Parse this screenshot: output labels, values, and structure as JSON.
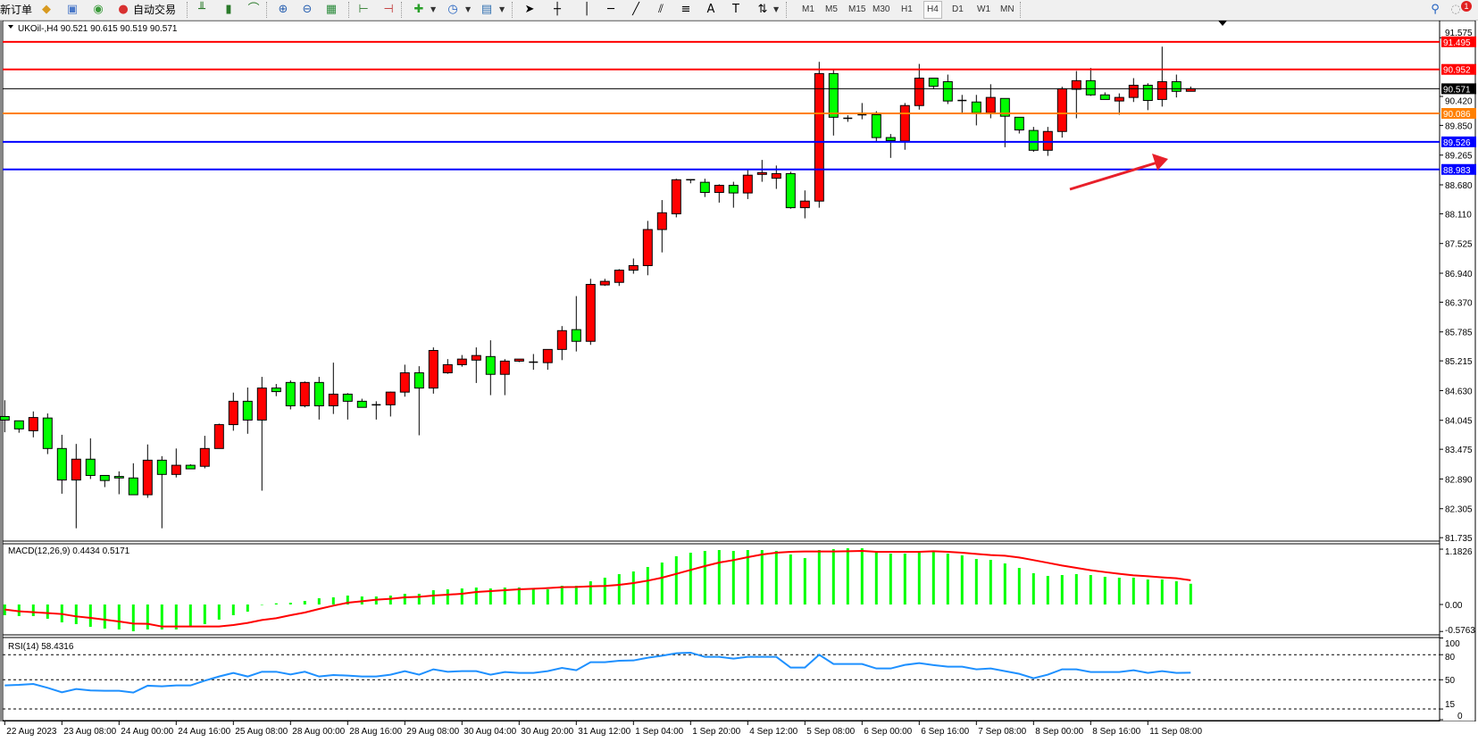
{
  "toolbar": {
    "new_order_label": "新订单",
    "auto_trade_label": "自动交易",
    "icons": [
      "new-order-icon",
      "expert-icon",
      "account-icon",
      "signal-icon",
      "auto-trading-icon",
      "bar-chart-icon",
      "candlestick-icon",
      "line-chart-icon",
      "zoom-in-icon",
      "zoom-out-icon",
      "tile-windows-icon",
      "chart-shift-icon",
      "autoscroll-icon",
      "indicators-icon",
      "periods-icon",
      "templates-icon",
      "cursor-icon",
      "crosshair-icon",
      "vertical-line-icon",
      "horizontal-line-icon",
      "trendline-icon",
      "channel-icon",
      "fibonacci-icon",
      "text-icon",
      "text-label-icon",
      "arrows-icon",
      "search-icon",
      "notifications-icon"
    ],
    "timeframes": [
      "M1",
      "M5",
      "M15",
      "M30",
      "H1",
      "H4",
      "D1",
      "W1",
      "MN"
    ],
    "active_timeframe": "H4",
    "notification_count": "1"
  },
  "chart": {
    "header": "UKOil-,H4  90.521 90.615 90.519 90.571",
    "symbol": "UKOil-",
    "timeframe": "H4",
    "colors": {
      "bull": "#ff0000",
      "bear": "#00ff00",
      "outline": "#000000"
    },
    "price_ticks": [
      "91.575",
      "90.420",
      "89.850",
      "89.265",
      "88.680",
      "88.110",
      "87.525",
      "86.940",
      "86.370",
      "85.785",
      "85.215",
      "84.630",
      "84.045",
      "83.475",
      "82.890",
      "82.305",
      "81.735"
    ],
    "levels": [
      {
        "price": "91.495",
        "color": "#ff0000"
      },
      {
        "price": "90.952",
        "color": "#ff0000"
      },
      {
        "price": "90.571",
        "color": "#000000"
      },
      {
        "price": "90.086",
        "color": "#ff8000"
      },
      {
        "price": "89.526",
        "color": "#0000ff"
      },
      {
        "price": "88.983",
        "color": "#0000ff"
      }
    ],
    "annotation_arrow_color": "#e8202a",
    "time_labels": [
      "22 Aug 2023",
      "23 Aug 08:00",
      "24 Aug 00:00",
      "24 Aug 16:00",
      "25 Aug 08:00",
      "28 Aug 00:00",
      "28 Aug 16:00",
      "29 Aug 08:00",
      "30 Aug 04:00",
      "30 Aug 20:00",
      "31 Aug 12:00",
      "1 Sep 04:00",
      "1 Sep 20:00",
      "4 Sep 12:00",
      "5 Sep 08:00",
      "6 Sep 00:00",
      "6 Sep 16:00",
      "7 Sep 08:00",
      "8 Sep 00:00",
      "8 Sep 16:00",
      "11 Sep 08:00"
    ],
    "ohlc": [
      [
        84.12,
        84.44,
        83.81,
        84.05
      ],
      [
        84.035,
        84.04,
        83.8,
        83.876
      ],
      [
        83.84,
        84.22,
        83.71,
        84.1
      ],
      [
        84.09,
        84.18,
        83.38,
        83.49
      ],
      [
        83.49,
        83.76,
        82.6,
        82.87
      ],
      [
        82.87,
        83.58,
        81.92,
        83.28
      ],
      [
        83.28,
        83.69,
        82.89,
        82.96
      ],
      [
        82.96,
        82.96,
        82.73,
        82.86
      ],
      [
        82.94,
        83.04,
        82.59,
        82.91
      ],
      [
        82.91,
        83.2,
        82.58,
        82.58
      ],
      [
        82.58,
        83.57,
        82.52,
        83.26
      ],
      [
        83.26,
        83.34,
        81.92,
        82.98
      ],
      [
        82.98,
        83.49,
        82.92,
        83.16
      ],
      [
        83.16,
        83.18,
        83.09,
        83.09
      ],
      [
        83.14,
        83.74,
        83.1,
        83.49
      ],
      [
        83.49,
        83.98,
        83.49,
        83.96
      ],
      [
        83.96,
        84.59,
        83.84,
        84.42
      ],
      [
        84.42,
        84.69,
        83.78,
        84.05
      ],
      [
        84.05,
        84.9,
        82.66,
        84.68
      ],
      [
        84.68,
        84.76,
        84.52,
        84.61
      ],
      [
        84.79,
        84.83,
        84.26,
        84.33
      ],
      [
        84.33,
        84.81,
        84.3,
        84.79
      ],
      [
        84.79,
        84.9,
        84.06,
        84.33
      ],
      [
        84.33,
        85.18,
        84.17,
        84.56
      ],
      [
        84.56,
        84.58,
        84.06,
        84.42
      ],
      [
        84.42,
        84.47,
        84.3,
        84.3
      ],
      [
        84.35,
        84.42,
        84.06,
        84.35
      ],
      [
        84.35,
        84.61,
        84.12,
        84.6
      ],
      [
        84.6,
        85.14,
        84.51,
        84.98
      ],
      [
        84.98,
        85.11,
        83.75,
        84.68
      ],
      [
        84.68,
        85.48,
        84.57,
        85.42
      ],
      [
        84.98,
        85.25,
        84.96,
        85.14
      ],
      [
        85.14,
        85.33,
        85.1,
        85.25
      ],
      [
        85.23,
        85.48,
        84.78,
        85.32
      ],
      [
        85.3,
        85.62,
        84.54,
        84.95
      ],
      [
        84.95,
        85.25,
        84.54,
        85.21
      ],
      [
        85.21,
        85.25,
        85.19,
        85.25
      ],
      [
        85.19,
        85.35,
        85.04,
        85.19
      ],
      [
        85.18,
        85.44,
        85.04,
        85.44
      ],
      [
        85.44,
        85.9,
        85.23,
        85.81
      ],
      [
        85.83,
        86.49,
        85.4,
        85.6
      ],
      [
        85.6,
        86.83,
        85.53,
        86.72
      ],
      [
        86.71,
        86.83,
        86.69,
        86.78
      ],
      [
        86.76,
        87.02,
        86.69,
        87.0
      ],
      [
        87.0,
        87.23,
        86.93,
        87.09
      ],
      [
        87.09,
        87.97,
        86.9,
        87.8
      ],
      [
        87.8,
        88.38,
        87.35,
        88.13
      ],
      [
        88.11,
        88.8,
        88.04,
        88.78
      ],
      [
        88.78,
        88.78,
        88.71,
        88.78
      ],
      [
        88.73,
        88.8,
        88.44,
        88.53
      ],
      [
        88.53,
        88.69,
        88.33,
        88.67
      ],
      [
        88.67,
        88.74,
        88.23,
        88.52
      ],
      [
        88.52,
        88.97,
        88.4,
        88.87
      ],
      [
        88.885,
        89.17,
        88.74,
        88.92
      ],
      [
        88.81,
        89.06,
        88.6,
        88.9
      ],
      [
        88.9,
        88.94,
        88.21,
        88.23
      ],
      [
        88.23,
        88.57,
        88.02,
        88.36
      ],
      [
        88.36,
        91.1,
        88.23,
        90.87
      ],
      [
        90.87,
        90.94,
        89.65,
        90.01
      ],
      [
        89.99,
        90.05,
        89.92,
        89.99
      ],
      [
        90.06,
        90.29,
        89.97,
        90.06
      ],
      [
        90.06,
        90.13,
        89.54,
        89.61
      ],
      [
        89.61,
        89.68,
        89.21,
        89.55
      ],
      [
        89.54,
        90.29,
        89.37,
        90.24
      ],
      [
        90.24,
        91.06,
        90.16,
        90.78
      ],
      [
        90.78,
        90.78,
        90.56,
        90.62
      ],
      [
        90.71,
        90.85,
        90.27,
        90.33
      ],
      [
        90.34,
        90.45,
        90.1,
        90.34
      ],
      [
        90.31,
        90.45,
        89.85,
        90.1
      ],
      [
        90.1,
        90.66,
        89.99,
        90.4
      ],
      [
        90.38,
        90.38,
        89.42,
        90.03
      ],
      [
        90.01,
        90.01,
        89.69,
        89.76
      ],
      [
        89.75,
        89.82,
        89.33,
        89.36
      ],
      [
        89.36,
        89.82,
        89.25,
        89.73
      ],
      [
        89.73,
        90.61,
        89.61,
        90.57
      ],
      [
        90.56,
        90.92,
        89.99,
        90.73
      ],
      [
        90.73,
        90.98,
        90.43,
        90.45
      ],
      [
        90.45,
        90.5,
        90.36,
        90.36
      ],
      [
        90.33,
        90.48,
        90.06,
        90.4
      ],
      [
        90.4,
        90.78,
        90.31,
        90.64
      ],
      [
        90.64,
        90.68,
        90.15,
        90.34
      ],
      [
        90.36,
        91.4,
        90.22,
        90.71
      ],
      [
        90.71,
        90.85,
        90.4,
        90.52
      ],
      [
        90.521,
        90.615,
        90.519,
        90.571
      ]
    ]
  },
  "macd": {
    "label": "MACD(12,26,9) 0.4434 0.5171",
    "ticks": [
      "1.1826",
      "0.00",
      "-0.5763"
    ],
    "histogram_color": "#00ff00",
    "signal_color": "#ff0000",
    "histogram": [
      -0.229,
      -0.248,
      -0.248,
      -0.305,
      -0.382,
      -0.42,
      -0.477,
      -0.515,
      -0.534,
      -0.572,
      -0.534,
      -0.534,
      -0.534,
      -0.477,
      -0.42,
      -0.324,
      -0.229,
      -0.153,
      -0.01,
      0.025,
      0.038,
      0.076,
      0.134,
      0.153,
      0.191,
      0.172,
      0.172,
      0.191,
      0.229,
      0.229,
      0.305,
      0.324,
      0.343,
      0.363,
      0.343,
      0.363,
      0.363,
      0.324,
      0.324,
      0.401,
      0.401,
      0.496,
      0.573,
      0.649,
      0.706,
      0.802,
      0.897,
      1.031,
      1.107,
      1.145,
      1.164,
      1.145,
      1.164,
      1.164,
      1.145,
      1.069,
      0.992,
      1.164,
      1.183,
      1.202,
      1.202,
      1.126,
      1.088,
      1.088,
      1.107,
      1.126,
      1.088,
      1.05,
      0.973,
      0.954,
      0.878,
      0.782,
      0.668,
      0.611,
      0.63,
      0.649,
      0.63,
      0.592,
      0.573,
      0.573,
      0.534,
      0.534,
      0.496,
      0.4434
    ],
    "signal": [
      -0.108,
      -0.146,
      -0.165,
      -0.184,
      -0.204,
      -0.254,
      -0.286,
      -0.324,
      -0.363,
      -0.407,
      -0.413,
      -0.471,
      -0.471,
      -0.471,
      -0.471,
      -0.471,
      -0.439,
      -0.394,
      -0.331,
      -0.293,
      -0.229,
      -0.172,
      -0.095,
      -0.025,
      0.038,
      0.07,
      0.102,
      0.121,
      0.153,
      0.165,
      0.191,
      0.21,
      0.229,
      0.267,
      0.286,
      0.305,
      0.324,
      0.337,
      0.35,
      0.369,
      0.375,
      0.388,
      0.395,
      0.42,
      0.458,
      0.509,
      0.573,
      0.655,
      0.738,
      0.821,
      0.897,
      0.948,
      1.011,
      1.069,
      1.107,
      1.126,
      1.132,
      1.132,
      1.132,
      1.139,
      1.145,
      1.126,
      1.126,
      1.126,
      1.126,
      1.139,
      1.126,
      1.107,
      1.081,
      1.056,
      1.043,
      1.005,
      0.948,
      0.891,
      0.833,
      0.782,
      0.732,
      0.693,
      0.655,
      0.623,
      0.604,
      0.579,
      0.56,
      0.5171
    ]
  },
  "rsi": {
    "label": "RSI(14) 58.4316",
    "ticks": [
      "100",
      "80",
      "50",
      "15",
      "0"
    ],
    "line_color": "#1e90ff",
    "values": [
      43.2,
      43.9,
      45.0,
      40.4,
      35.0,
      39.0,
      37.2,
      36.8,
      36.8,
      34.7,
      42.9,
      42.2,
      43.2,
      43.2,
      48.9,
      53.9,
      58.2,
      53.9,
      59.6,
      59.6,
      56.4,
      59.6,
      53.9,
      55.7,
      55.0,
      53.9,
      53.9,
      56.1,
      60.3,
      56.1,
      62.5,
      59.6,
      60.3,
      60.3,
      56.1,
      59.3,
      58.2,
      58.2,
      60.3,
      64.2,
      61.4,
      71.0,
      71.0,
      72.8,
      73.1,
      76.4,
      78.8,
      81.7,
      82.4,
      77.4,
      77.4,
      75.3,
      77.4,
      77.4,
      77.4,
      64.6,
      64.6,
      79.9,
      68.9,
      68.9,
      68.9,
      63.5,
      63.5,
      67.8,
      69.9,
      67.5,
      65.7,
      65.7,
      62.5,
      63.5,
      60.3,
      57.1,
      51.8,
      56.1,
      62.5,
      62.5,
      59.3,
      59.3,
      59.3,
      61.4,
      58.2,
      60.3,
      58.2,
      58.4316
    ]
  }
}
